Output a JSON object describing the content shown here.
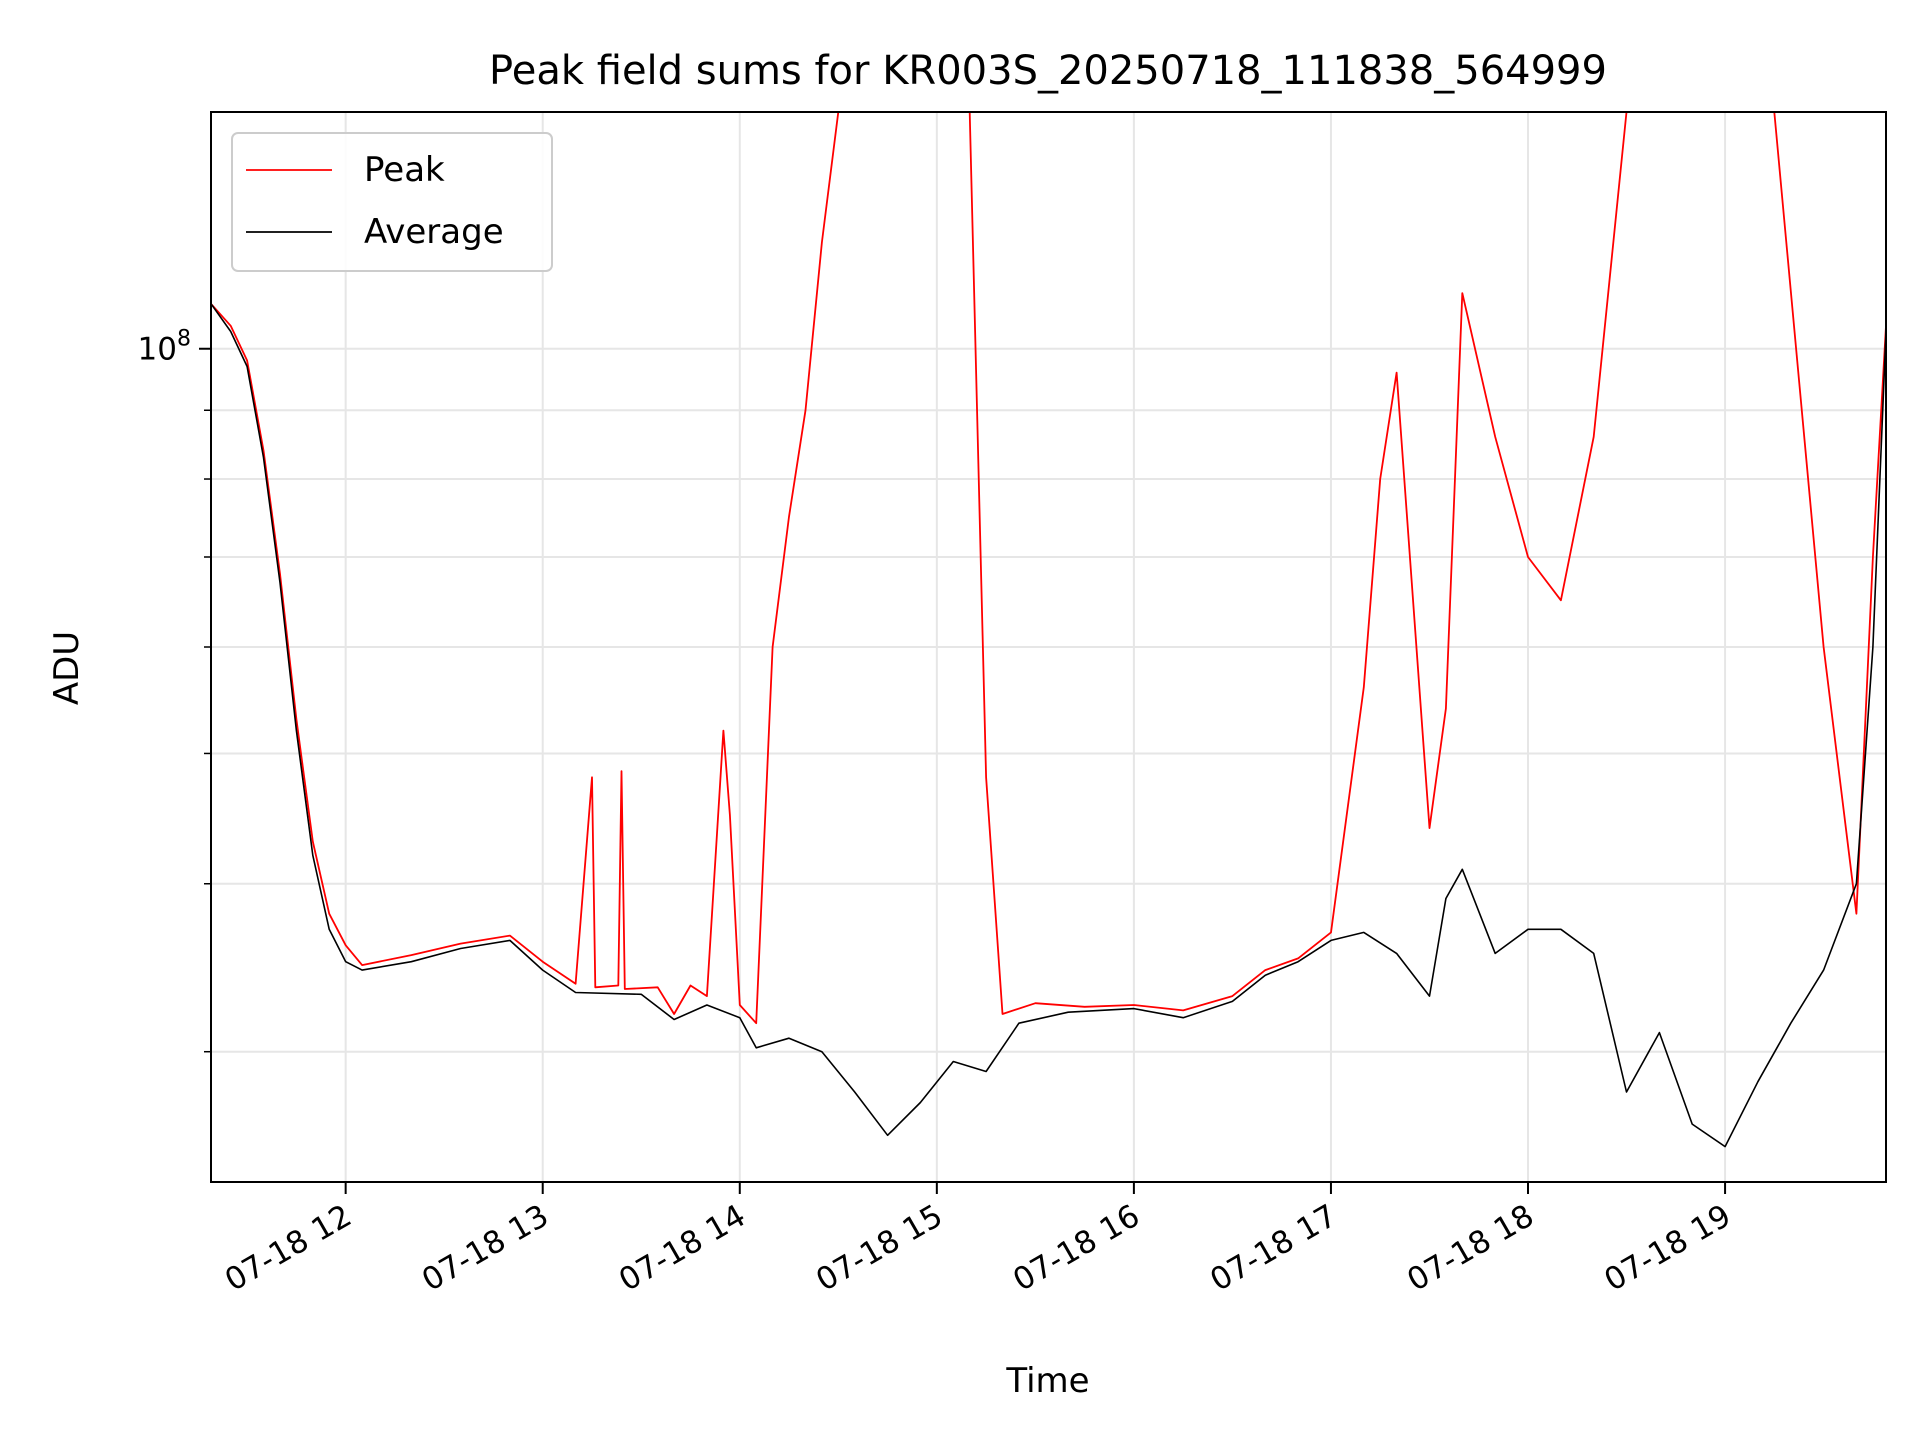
{
  "chart_data": {
    "type": "line",
    "title": "Peak field sums for KR003S_20250718_111838_564999",
    "xlabel": "Time",
    "ylabel": "ADU",
    "x_scale": "time",
    "y_scale": "log",
    "xlim": [
      "2025-07-18 11:19",
      "2025-07-18 19:49"
    ],
    "ylim": [
      24000000,
      150000000
    ],
    "grid": true,
    "legend_position": "top-left",
    "x_tick_labels": [
      {
        "at": "2025-07-18 12:00",
        "label": "07-18 12"
      },
      {
        "at": "2025-07-18 13:00",
        "label": "07-18 13"
      },
      {
        "at": "2025-07-18 14:00",
        "label": "07-18 14"
      },
      {
        "at": "2025-07-18 15:00",
        "label": "07-18 15"
      },
      {
        "at": "2025-07-18 16:00",
        "label": "07-18 16"
      },
      {
        "at": "2025-07-18 17:00",
        "label": "07-18 17"
      },
      {
        "at": "2025-07-18 18:00",
        "label": "07-18 18"
      },
      {
        "at": "2025-07-18 19:00",
        "label": "07-18 19"
      }
    ],
    "y_major_ticks": [
      {
        "value": 100000000,
        "base": "10",
        "exponent": "8"
      }
    ],
    "y_minor_ticks": [
      30000000,
      40000000,
      50000000,
      60000000,
      70000000,
      80000000,
      90000000,
      200000000
    ],
    "series": [
      {
        "name": "Peak",
        "color": "#ff0000",
        "points": [
          [
            "2025-07-18 11:19",
            108000000
          ],
          [
            "2025-07-18 11:25",
            104000000
          ],
          [
            "2025-07-18 11:30",
            98000000
          ],
          [
            "2025-07-18 11:35",
            84000000
          ],
          [
            "2025-07-18 11:40",
            68000000
          ],
          [
            "2025-07-18 11:45",
            53000000
          ],
          [
            "2025-07-18 11:50",
            43000000
          ],
          [
            "2025-07-18 11:55",
            38000000
          ],
          [
            "2025-07-18 12:00",
            36000000
          ],
          [
            "2025-07-18 12:05",
            34800000
          ],
          [
            "2025-07-18 12:20",
            35400000
          ],
          [
            "2025-07-18 12:35",
            36100000
          ],
          [
            "2025-07-18 12:50",
            36600000
          ],
          [
            "2025-07-18 13:00",
            35000000
          ],
          [
            "2025-07-18 13:10",
            33700000
          ],
          [
            "2025-07-18 13:15",
            48000000
          ],
          [
            "2025-07-18 13:16",
            33500000
          ],
          [
            "2025-07-18 13:23",
            33600000
          ],
          [
            "2025-07-18 13:24",
            48500000
          ],
          [
            "2025-07-18 13:25",
            33400000
          ],
          [
            "2025-07-18 13:35",
            33500000
          ],
          [
            "2025-07-18 13:40",
            32000000
          ],
          [
            "2025-07-18 13:45",
            33600000
          ],
          [
            "2025-07-18 13:50",
            33000000
          ],
          [
            "2025-07-18 13:55",
            52000000
          ],
          [
            "2025-07-18 13:57",
            45000000
          ],
          [
            "2025-07-18 14:00",
            32500000
          ],
          [
            "2025-07-18 14:05",
            31500000
          ],
          [
            "2025-07-18 14:10",
            60000000
          ],
          [
            "2025-07-18 14:15",
            75000000
          ],
          [
            "2025-07-18 14:20",
            90000000
          ],
          [
            "2025-07-18 14:25",
            120000000
          ],
          [
            "2025-07-18 14:30",
            150000000
          ],
          [
            "2025-07-18 14:40",
            150000000
          ],
          [
            "2025-07-18 14:50",
            150000000
          ],
          [
            "2025-07-18 15:00",
            150000000
          ],
          [
            "2025-07-18 15:10",
            150000000
          ],
          [
            "2025-07-18 15:15",
            48000000
          ],
          [
            "2025-07-18 15:20",
            32000000
          ],
          [
            "2025-07-18 15:30",
            32600000
          ],
          [
            "2025-07-18 15:45",
            32400000
          ],
          [
            "2025-07-18 16:00",
            32500000
          ],
          [
            "2025-07-18 16:15",
            32200000
          ],
          [
            "2025-07-18 16:30",
            33000000
          ],
          [
            "2025-07-18 16:40",
            34500000
          ],
          [
            "2025-07-18 16:50",
            35200000
          ],
          [
            "2025-07-18 17:00",
            36800000
          ],
          [
            "2025-07-18 17:10",
            56000000
          ],
          [
            "2025-07-18 17:15",
            80000000
          ],
          [
            "2025-07-18 17:20",
            96000000
          ],
          [
            "2025-07-18 17:30",
            44000000
          ],
          [
            "2025-07-18 17:35",
            54000000
          ],
          [
            "2025-07-18 17:40",
            110000000
          ],
          [
            "2025-07-18 17:50",
            86000000
          ],
          [
            "2025-07-18 18:00",
            70000000
          ],
          [
            "2025-07-18 18:10",
            65000000
          ],
          [
            "2025-07-18 18:20",
            86000000
          ],
          [
            "2025-07-18 18:30",
            150000000
          ],
          [
            "2025-07-18 18:45",
            150000000
          ],
          [
            "2025-07-18 19:00",
            150000000
          ],
          [
            "2025-07-18 19:15",
            150000000
          ],
          [
            "2025-07-18 19:30",
            60000000
          ],
          [
            "2025-07-18 19:40",
            38000000
          ],
          [
            "2025-07-18 19:45",
            70000000
          ],
          [
            "2025-07-18 19:49",
            104000000
          ]
        ]
      },
      {
        "name": "Average",
        "color": "#000000",
        "points": [
          [
            "2025-07-18 11:19",
            108000000
          ],
          [
            "2025-07-18 11:25",
            103000000
          ],
          [
            "2025-07-18 11:30",
            97000000
          ],
          [
            "2025-07-18 11:35",
            83000000
          ],
          [
            "2025-07-18 11:40",
            67000000
          ],
          [
            "2025-07-18 11:45",
            52000000
          ],
          [
            "2025-07-18 11:50",
            42000000
          ],
          [
            "2025-07-18 11:55",
            37000000
          ],
          [
            "2025-07-18 12:00",
            35000000
          ],
          [
            "2025-07-18 12:05",
            34500000
          ],
          [
            "2025-07-18 12:20",
            35000000
          ],
          [
            "2025-07-18 12:35",
            35800000
          ],
          [
            "2025-07-18 12:50",
            36300000
          ],
          [
            "2025-07-18 13:00",
            34500000
          ],
          [
            "2025-07-18 13:10",
            33200000
          ],
          [
            "2025-07-18 13:30",
            33100000
          ],
          [
            "2025-07-18 13:40",
            31700000
          ],
          [
            "2025-07-18 13:50",
            32500000
          ],
          [
            "2025-07-18 14:00",
            31800000
          ],
          [
            "2025-07-18 14:05",
            30200000
          ],
          [
            "2025-07-18 14:15",
            30700000
          ],
          [
            "2025-07-18 14:25",
            30000000
          ],
          [
            "2025-07-18 14:35",
            28000000
          ],
          [
            "2025-07-18 14:45",
            26000000
          ],
          [
            "2025-07-18 14:55",
            27500000
          ],
          [
            "2025-07-18 15:05",
            29500000
          ],
          [
            "2025-07-18 15:15",
            29000000
          ],
          [
            "2025-07-18 15:25",
            31500000
          ],
          [
            "2025-07-18 15:40",
            32100000
          ],
          [
            "2025-07-18 16:00",
            32300000
          ],
          [
            "2025-07-18 16:15",
            31800000
          ],
          [
            "2025-07-18 16:30",
            32700000
          ],
          [
            "2025-07-18 16:40",
            34200000
          ],
          [
            "2025-07-18 16:50",
            35000000
          ],
          [
            "2025-07-18 17:00",
            36300000
          ],
          [
            "2025-07-18 17:10",
            36800000
          ],
          [
            "2025-07-18 17:20",
            35500000
          ],
          [
            "2025-07-18 17:30",
            33000000
          ],
          [
            "2025-07-18 17:35",
            39000000
          ],
          [
            "2025-07-18 17:40",
            41000000
          ],
          [
            "2025-07-18 17:50",
            35500000
          ],
          [
            "2025-07-18 18:00",
            37000000
          ],
          [
            "2025-07-18 18:10",
            37000000
          ],
          [
            "2025-07-18 18:20",
            35500000
          ],
          [
            "2025-07-18 18:30",
            28000000
          ],
          [
            "2025-07-18 18:40",
            31000000
          ],
          [
            "2025-07-18 18:50",
            26500000
          ],
          [
            "2025-07-18 19:00",
            25500000
          ],
          [
            "2025-07-18 19:10",
            28500000
          ],
          [
            "2025-07-18 19:20",
            31500000
          ],
          [
            "2025-07-18 19:30",
            34500000
          ],
          [
            "2025-07-18 19:40",
            40000000
          ],
          [
            "2025-07-18 19:45",
            60000000
          ],
          [
            "2025-07-18 19:49",
            103000000
          ]
        ]
      }
    ]
  }
}
